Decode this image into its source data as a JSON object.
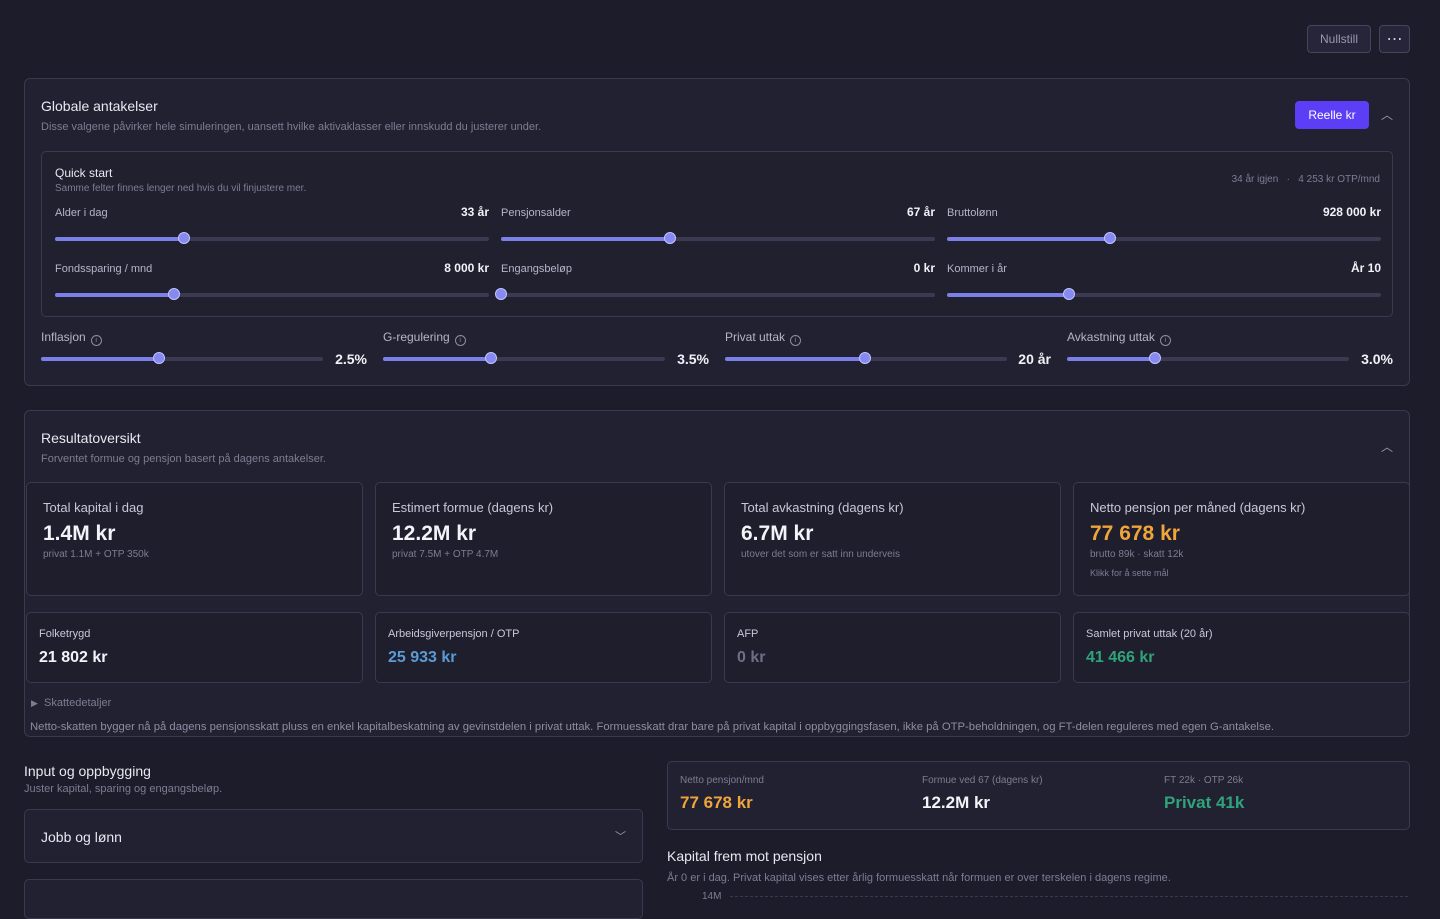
{
  "header": {
    "reset": "Nullstill"
  },
  "global": {
    "title": "Globale antakelser",
    "subtitle": "Disse valgene påvirker hele simuleringen, uansett hvilke aktivaklasser eller innskudd du justerer under.",
    "mode": "Reelle kr",
    "quick_start": {
      "title": "Quick start",
      "subtitle": "Samme felter finnes lenger ned hvis du vil finjustere mer.",
      "remaining": "34 år igjen",
      "otp": "4 253 kr OTP/mnd",
      "sliders": [
        {
          "label": "Alder i dag",
          "value": "33 år"
        },
        {
          "label": "Pensjonsalder",
          "value": "67 år"
        },
        {
          "label": "Bruttolønn",
          "value": "928 000 kr"
        },
        {
          "label": "Fondssparing / mnd",
          "value": "8 000 kr"
        },
        {
          "label": "Engangsbeløp",
          "value": "0 kr"
        },
        {
          "label": "Kommer i år",
          "value": "År 10"
        }
      ]
    },
    "sliders": [
      {
        "label": "Inflasjon",
        "value": "2.5%"
      },
      {
        "label": "G-regulering",
        "value": "3.5%"
      },
      {
        "label": "Privat uttak",
        "value": "20 år"
      },
      {
        "label": "Avkastning uttak",
        "value": "3.0%"
      }
    ]
  },
  "results": {
    "title": "Resultatoversikt",
    "subtitle": "Forventet formue og pensjon basert på dagens antakelser.",
    "cards": [
      {
        "label": "Total kapital i dag",
        "value": "1.4M kr",
        "detail": "privat 1.1M + OTP 350k"
      },
      {
        "label": "Estimert formue (dagens kr)",
        "value": "12.2M kr",
        "detail": "privat 7.5M + OTP 4.7M"
      },
      {
        "label": "Total avkastning (dagens kr)",
        "value": "6.7M kr",
        "detail": "utover det som er satt inn underveis"
      },
      {
        "label": "Netto pensjon per måned (dagens kr)",
        "value": "77 678 kr",
        "detail": "brutto 89k · skatt 12k",
        "hint": "Klikk for å sette mål"
      }
    ],
    "small_cards": [
      {
        "label": "Folketrygd",
        "value": "21 802 kr"
      },
      {
        "label": "Arbeidsgiverpensjon / OTP",
        "value": "25 933 kr"
      },
      {
        "label": "AFP",
        "value": "0 kr"
      },
      {
        "label": "Samlet privat uttak (20 år)",
        "value": "41 466 kr"
      }
    ],
    "tax_toggle": "Skattedetaljer",
    "note": "Netto-skatten bygger nå på dagens pensjonsskatt pluss en enkel kapitalbeskatning av gevinstdelen i privat uttak. Formuesskatt drar bare på privat kapital i oppbyggingsfasen, ikke på OTP-beholdningen, og FT-delen reguleres med egen G-antakelse."
  },
  "input": {
    "title": "Input og oppbygging",
    "subtitle": "Juster kapital, sparing og engangsbeløp.",
    "sections": [
      "Jobb og lønn"
    ]
  },
  "summary": [
    {
      "label": "Netto pensjon/mnd",
      "value": "77 678 kr"
    },
    {
      "label": "Formue ved 67 (dagens kr)",
      "value": "12.2M kr"
    },
    {
      "label": "FT 22k · OTP 26k",
      "value": "Privat 41k"
    }
  ],
  "chart": {
    "title": "Kapital frem mot pensjon",
    "subtitle": "År 0 er i dag. Privat kapital vises etter årlig formuesskatt når formuen er over terskelen i dagens regime.",
    "ytick": "14M"
  }
}
